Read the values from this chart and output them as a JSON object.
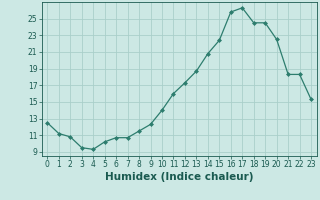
{
  "x": [
    0,
    1,
    2,
    3,
    4,
    5,
    6,
    7,
    8,
    9,
    10,
    11,
    12,
    13,
    14,
    15,
    16,
    17,
    18,
    19,
    20,
    21,
    22,
    23
  ],
  "y": [
    12.5,
    11.2,
    10.8,
    9.5,
    9.3,
    10.2,
    10.7,
    10.7,
    11.5,
    12.3,
    14.0,
    16.0,
    17.3,
    18.7,
    20.8,
    22.4,
    25.8,
    26.3,
    24.5,
    24.5,
    22.5,
    18.3,
    18.3,
    15.3
  ],
  "xlim": [
    -0.5,
    23.5
  ],
  "ylim": [
    8.5,
    27.0
  ],
  "xticks": [
    0,
    1,
    2,
    3,
    4,
    5,
    6,
    7,
    8,
    9,
    10,
    11,
    12,
    13,
    14,
    15,
    16,
    17,
    18,
    19,
    20,
    21,
    22,
    23
  ],
  "yticks": [
    9,
    11,
    13,
    15,
    17,
    19,
    21,
    23,
    25
  ],
  "xlabel": "Humidex (Indice chaleur)",
  "line_color": "#2d7d6e",
  "marker": "D",
  "marker_size": 2.0,
  "bg_color": "#cce8e4",
  "grid_color": "#aacfca",
  "tick_label_color": "#1a5a50",
  "xlabel_color": "#1a5a50",
  "xlabel_fontsize": 7.5,
  "tick_fontsize": 5.5
}
